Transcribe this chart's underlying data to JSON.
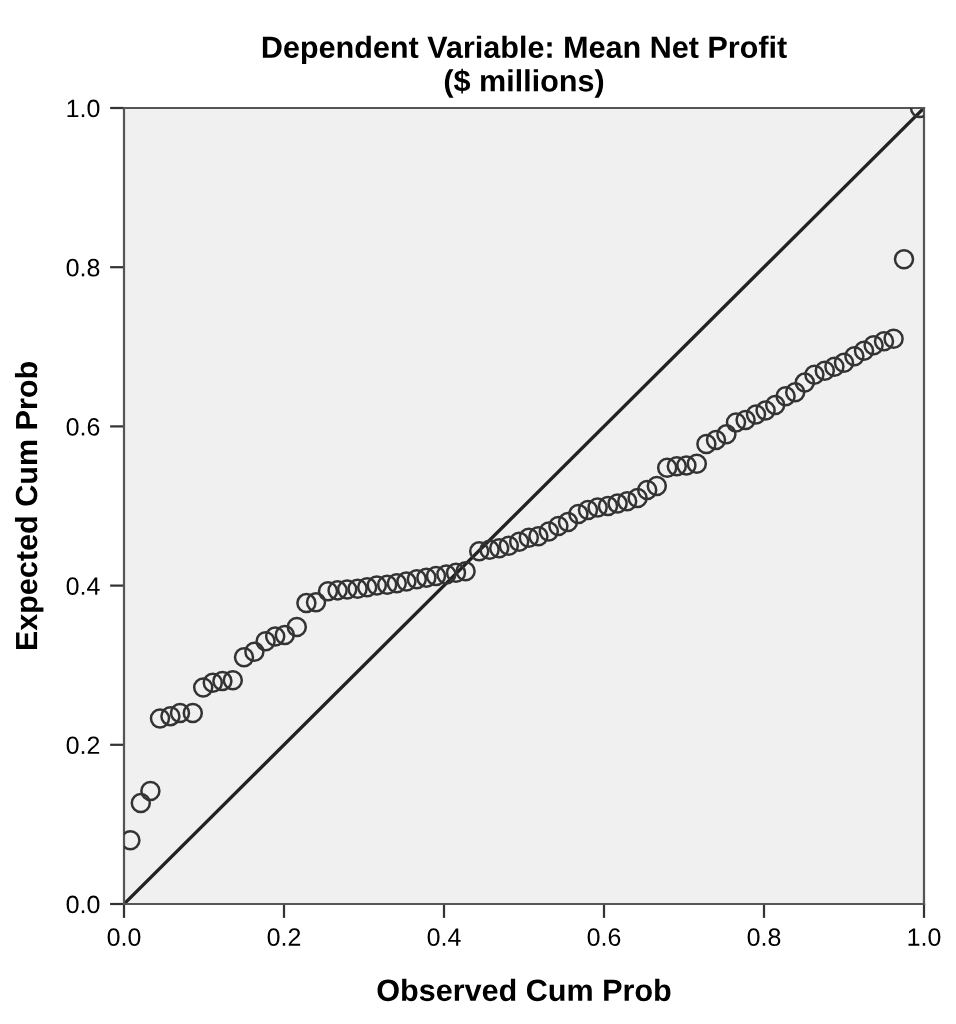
{
  "chart_data": {
    "type": "scatter",
    "title": "Dependent Variable: Mean Net Profit\n($ millions)",
    "xlabel": "Observed Cum Prob",
    "ylabel": "Expected Cum Prob",
    "xlim": [
      0,
      1
    ],
    "ylim": [
      0,
      1
    ],
    "xticks": [
      {
        "value": 0,
        "label": "0.0"
      },
      {
        "value": 0.2,
        "label": "0.2"
      },
      {
        "value": 0.4,
        "label": "0.4"
      },
      {
        "value": 0.6,
        "label": "0.6"
      },
      {
        "value": 0.8,
        "label": "0.8"
      },
      {
        "value": 1,
        "label": "1.0"
      }
    ],
    "yticks": [
      {
        "value": 0,
        "label": "0.0"
      },
      {
        "value": 0.2,
        "label": "0.2"
      },
      {
        "value": 0.4,
        "label": "0.4"
      },
      {
        "value": 0.6,
        "label": "0.6"
      },
      {
        "value": 0.8,
        "label": "0.8"
      },
      {
        "value": 1,
        "label": "1.0"
      }
    ],
    "grid": false,
    "legend": false,
    "series": [
      {
        "marker": "circle",
        "color": "#333333",
        "x": [
          0.008,
          0.021,
          0.033,
          0.045,
          0.058,
          0.07,
          0.086,
          0.099,
          0.111,
          0.123,
          0.136,
          0.15,
          0.163,
          0.177,
          0.189,
          0.201,
          0.216,
          0.228,
          0.24,
          0.255,
          0.267,
          0.279,
          0.292,
          0.304,
          0.316,
          0.329,
          0.341,
          0.353,
          0.366,
          0.378,
          0.39,
          0.403,
          0.415,
          0.427,
          0.444,
          0.457,
          0.469,
          0.481,
          0.494,
          0.506,
          0.518,
          0.531,
          0.543,
          0.555,
          0.568,
          0.58,
          0.592,
          0.605,
          0.617,
          0.629,
          0.642,
          0.654,
          0.666,
          0.679,
          0.691,
          0.703,
          0.716,
          0.728,
          0.74,
          0.753,
          0.765,
          0.777,
          0.79,
          0.802,
          0.814,
          0.827,
          0.839,
          0.851,
          0.863,
          0.876,
          0.888,
          0.9,
          0.913,
          0.925,
          0.937,
          0.95,
          0.962,
          0.975,
          0.995
        ],
        "values": [
          0.08,
          0.127,
          0.142,
          0.233,
          0.236,
          0.24,
          0.24,
          0.272,
          0.278,
          0.28,
          0.281,
          0.31,
          0.317,
          0.33,
          0.336,
          0.338,
          0.348,
          0.378,
          0.379,
          0.393,
          0.394,
          0.395,
          0.396,
          0.398,
          0.4,
          0.401,
          0.403,
          0.405,
          0.408,
          0.41,
          0.412,
          0.414,
          0.416,
          0.418,
          0.443,
          0.445,
          0.447,
          0.45,
          0.455,
          0.46,
          0.462,
          0.468,
          0.475,
          0.48,
          0.49,
          0.495,
          0.498,
          0.5,
          0.503,
          0.506,
          0.51,
          0.52,
          0.525,
          0.548,
          0.55,
          0.551,
          0.553,
          0.578,
          0.583,
          0.59,
          0.605,
          0.608,
          0.615,
          0.62,
          0.627,
          0.638,
          0.643,
          0.655,
          0.665,
          0.67,
          0.675,
          0.68,
          0.688,
          0.695,
          0.702,
          0.707,
          0.71,
          0.81,
          1.0
        ]
      },
      {
        "type": "line",
        "color": "#222222",
        "line_style": "solid",
        "marker": "none",
        "x": [
          0,
          1
        ],
        "values": [
          0,
          1
        ]
      }
    ]
  }
}
